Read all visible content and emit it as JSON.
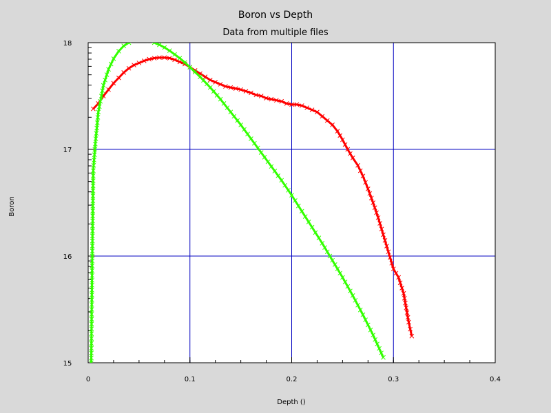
{
  "chart_data": {
    "type": "line",
    "title": "Boron vs Depth",
    "subtitle": "Data from multiple files",
    "xlabel": "Depth ()",
    "ylabel": "Boron",
    "xlim": [
      0,
      0.4
    ],
    "ylim": [
      15,
      18
    ],
    "x_ticks": [
      "0",
      "0.1",
      "0.2",
      "0.3",
      "0.4"
    ],
    "y_ticks": [
      "15",
      "16",
      "17",
      "18"
    ],
    "grid": true,
    "legend": "none",
    "colors": {
      "background": "#d9d9d9",
      "plot_bg": "#ffffff",
      "grid": "#0000c0",
      "red": "#ff0000",
      "green": "#33ff00"
    },
    "series": [
      {
        "color": "#ff0000",
        "marker": "x",
        "x": [
          0.005,
          0.01,
          0.015,
          0.02,
          0.025,
          0.03,
          0.035,
          0.04,
          0.045,
          0.05,
          0.055,
          0.06,
          0.065,
          0.07,
          0.075,
          0.08,
          0.085,
          0.09,
          0.095,
          0.1,
          0.105,
          0.11,
          0.115,
          0.12,
          0.125,
          0.13,
          0.135,
          0.14,
          0.145,
          0.15,
          0.155,
          0.16,
          0.165,
          0.17,
          0.175,
          0.18,
          0.185,
          0.19,
          0.195,
          0.2,
          0.205,
          0.21,
          0.215,
          0.22,
          0.225,
          0.23,
          0.235,
          0.24,
          0.245,
          0.25,
          0.255,
          0.26,
          0.265,
          0.27,
          0.275,
          0.28,
          0.285,
          0.29,
          0.295,
          0.3,
          0.305,
          0.31,
          0.315,
          0.318
        ],
        "y": [
          17.38,
          17.43,
          17.5,
          17.56,
          17.62,
          17.67,
          17.72,
          17.76,
          17.79,
          17.81,
          17.83,
          17.845,
          17.855,
          17.86,
          17.86,
          17.855,
          17.84,
          17.82,
          17.8,
          17.77,
          17.74,
          17.71,
          17.68,
          17.65,
          17.63,
          17.61,
          17.59,
          17.58,
          17.57,
          17.56,
          17.545,
          17.53,
          17.51,
          17.5,
          17.48,
          17.47,
          17.46,
          17.45,
          17.43,
          17.42,
          17.42,
          17.41,
          17.39,
          17.37,
          17.35,
          17.31,
          17.27,
          17.23,
          17.17,
          17.09,
          17.0,
          16.92,
          16.85,
          16.75,
          16.63,
          16.5,
          16.36,
          16.2,
          16.04,
          15.88,
          15.8,
          15.65,
          15.38,
          15.25
        ]
      },
      {
        "color": "#33ff00",
        "marker": "x",
        "x": [
          0.003,
          0.004,
          0.005,
          0.007,
          0.01,
          0.015,
          0.02,
          0.025,
          0.03,
          0.035,
          0.04,
          0.045,
          0.05,
          0.055,
          0.06,
          0.065,
          0.07,
          0.075,
          0.08,
          0.085,
          0.09,
          0.095,
          0.1,
          0.11,
          0.12,
          0.13,
          0.14,
          0.15,
          0.16,
          0.17,
          0.18,
          0.19,
          0.2,
          0.21,
          0.22,
          0.23,
          0.24,
          0.25,
          0.26,
          0.27,
          0.28,
          0.29
        ],
        "y": [
          15.0,
          16.0,
          16.8,
          17.05,
          17.35,
          17.6,
          17.75,
          17.85,
          17.92,
          17.97,
          18.0,
          18.02,
          18.03,
          18.03,
          18.02,
          18.0,
          17.98,
          17.955,
          17.925,
          17.89,
          17.855,
          17.815,
          17.77,
          17.68,
          17.58,
          17.47,
          17.35,
          17.23,
          17.1,
          16.97,
          16.84,
          16.71,
          16.57,
          16.42,
          16.27,
          16.12,
          15.96,
          15.8,
          15.63,
          15.45,
          15.26,
          15.05
        ]
      }
    ]
  }
}
